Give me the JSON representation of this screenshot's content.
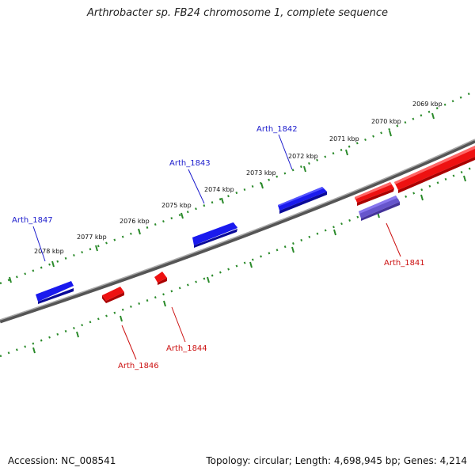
{
  "title": "Arthrobacter sp. FB24 chromosome 1, complete sequence",
  "footer": {
    "accession": "Accession: NC_008541",
    "summary": "Topology: circular; Length: 4,698,945 bp; Genes: 4,214"
  },
  "colors": {
    "forward_gene": "#1a1aee",
    "reverse_gene": "#ee1111",
    "highlight_gene": "#6655cc",
    "backbone": "#888888",
    "ticks": "#2a8a2a",
    "forward_label": "#1a1acc",
    "reverse_label": "#cc1111"
  },
  "kbp_ticks": [
    "2069 kbp",
    "2070 kbp",
    "2071 kbp",
    "2072 kbp",
    "2073 kbp",
    "2074 kbp",
    "2075 kbp",
    "2076 kbp",
    "2077 kbp",
    "2078 kbp"
  ],
  "genes": [
    {
      "label": "Arth_1847",
      "strand": "forward"
    },
    {
      "label": "Arth_1843",
      "strand": "forward"
    },
    {
      "label": "Arth_1842",
      "strand": "forward"
    },
    {
      "label": "Arth_1846",
      "strand": "reverse"
    },
    {
      "label": "Arth_1844",
      "strand": "reverse"
    },
    {
      "label": "Arth_1841",
      "strand": "reverse"
    }
  ]
}
